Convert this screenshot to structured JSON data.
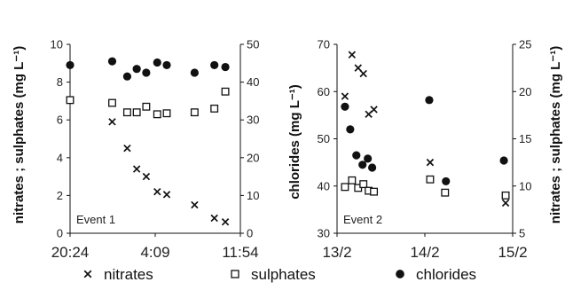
{
  "chart_data": [
    {
      "type": "scatter",
      "note": "Event 1",
      "xlabel": "",
      "ylabel_left": "nitrates ; sulphates (mg L⁻¹)",
      "ylabel_right": "",
      "x_ticks": [
        "20:24",
        "4:09",
        "11:54"
      ],
      "x_range": [
        "20:24",
        "11:54"
      ],
      "y_left_ticks": [
        "0",
        "2",
        "4",
        "6",
        "8",
        "10"
      ],
      "y_left_range": [
        0,
        10
      ],
      "y_right_ticks": [
        "0",
        "10",
        "20",
        "30",
        "40",
        "50"
      ],
      "y_right_range": [
        0,
        50
      ],
      "grid": false,
      "series": [
        {
          "name": "nitrates",
          "axis": "left",
          "marker": "x",
          "points": [
            {
              "x": "0:14",
              "y": 5.9
            },
            {
              "x": "1:36",
              "y": 4.5
            },
            {
              "x": "2:28",
              "y": 3.4
            },
            {
              "x": "3:20",
              "y": 3.0
            },
            {
              "x": "4:20",
              "y": 2.2
            },
            {
              "x": "5:12",
              "y": 2.05
            },
            {
              "x": "7:44",
              "y": 1.5
            },
            {
              "x": "9:32",
              "y": 0.8
            },
            {
              "x": "10:32",
              "y": 0.6
            }
          ]
        },
        {
          "name": "sulphates",
          "axis": "left",
          "marker": "square",
          "points": [
            {
              "x": "20:24",
              "y": 7.05
            },
            {
              "x": "0:14",
              "y": 6.9
            },
            {
              "x": "1:36",
              "y": 6.4
            },
            {
              "x": "2:28",
              "y": 6.4
            },
            {
              "x": "3:20",
              "y": 6.7
            },
            {
              "x": "4:20",
              "y": 6.3
            },
            {
              "x": "5:12",
              "y": 6.35
            },
            {
              "x": "7:44",
              "y": 6.4
            },
            {
              "x": "9:32",
              "y": 6.6
            },
            {
              "x": "10:32",
              "y": 7.5
            }
          ]
        },
        {
          "name": "chlorides",
          "axis": "right",
          "marker": "circle",
          "points": [
            {
              "x": "20:24",
              "y": 44.5
            },
            {
              "x": "0:14",
              "y": 45.5
            },
            {
              "x": "1:36",
              "y": 41.5
            },
            {
              "x": "2:28",
              "y": 43.5
            },
            {
              "x": "3:20",
              "y": 42.5
            },
            {
              "x": "4:20",
              "y": 45.2
            },
            {
              "x": "5:12",
              "y": 44.5
            },
            {
              "x": "7:44",
              "y": 42.5
            },
            {
              "x": "9:32",
              "y": 44.5
            },
            {
              "x": "10:32",
              "y": 44.0
            }
          ]
        }
      ]
    },
    {
      "type": "scatter",
      "note": "Event 2",
      "xlabel": "",
      "ylabel_left": "chlorides (mg L⁻¹)",
      "ylabel_right": "nitrates ; sulphates (mg L⁻¹)",
      "x_ticks": [
        "13/2",
        "14/2",
        "15/2"
      ],
      "x_range": [
        "13/2",
        "15/2"
      ],
      "y_left_ticks": [
        "30",
        "40",
        "50",
        "60",
        "70"
      ],
      "y_left_range": [
        30,
        70
      ],
      "y_right_ticks": [
        "5",
        "10",
        "15",
        "20",
        "25"
      ],
      "y_right_range": [
        5,
        25
      ],
      "grid": false,
      "series": [
        {
          "name": "nitrates",
          "axis": "right",
          "marker": "x",
          "points": [
            {
              "x": 13.09,
              "y": 19.5
            },
            {
              "x": 13.17,
              "y": 23.9
            },
            {
              "x": 13.24,
              "y": 22.5
            },
            {
              "x": 13.3,
              "y": 21.9
            },
            {
              "x": 13.36,
              "y": 17.6
            },
            {
              "x": 13.42,
              "y": 18.1
            },
            {
              "x": 14.06,
              "y": 12.5
            },
            {
              "x": 14.92,
              "y": 8.2
            }
          ]
        },
        {
          "name": "sulphates",
          "axis": "right",
          "marker": "square",
          "points": [
            {
              "x": 13.09,
              "y": 9.9
            },
            {
              "x": 13.17,
              "y": 10.6
            },
            {
              "x": 13.24,
              "y": 9.8
            },
            {
              "x": 13.3,
              "y": 10.2
            },
            {
              "x": 13.36,
              "y": 9.5
            },
            {
              "x": 13.42,
              "y": 9.4
            },
            {
              "x": 14.06,
              "y": 10.7
            },
            {
              "x": 14.23,
              "y": 9.3
            },
            {
              "x": 14.92,
              "y": 9.0
            }
          ]
        },
        {
          "name": "chlorides",
          "axis": "left",
          "marker": "circle",
          "points": [
            {
              "x": 13.09,
              "y": 56.8
            },
            {
              "x": 13.15,
              "y": 52.0
            },
            {
              "x": 13.22,
              "y": 46.5
            },
            {
              "x": 13.29,
              "y": 44.5
            },
            {
              "x": 13.35,
              "y": 45.8
            },
            {
              "x": 13.4,
              "y": 43.9
            },
            {
              "x": 14.05,
              "y": 58.2
            },
            {
              "x": 14.24,
              "y": 41.0
            },
            {
              "x": 14.9,
              "y": 45.4
            }
          ]
        }
      ]
    }
  ],
  "legend": {
    "placement": "bottom",
    "items": [
      {
        "name": "nitrates",
        "marker": "x"
      },
      {
        "name": "sulphates",
        "marker": "square"
      },
      {
        "name": "chlorides",
        "marker": "circle"
      }
    ]
  },
  "colors": {
    "marker": "#111111",
    "axis": "#111111",
    "background": "#ffffff"
  }
}
